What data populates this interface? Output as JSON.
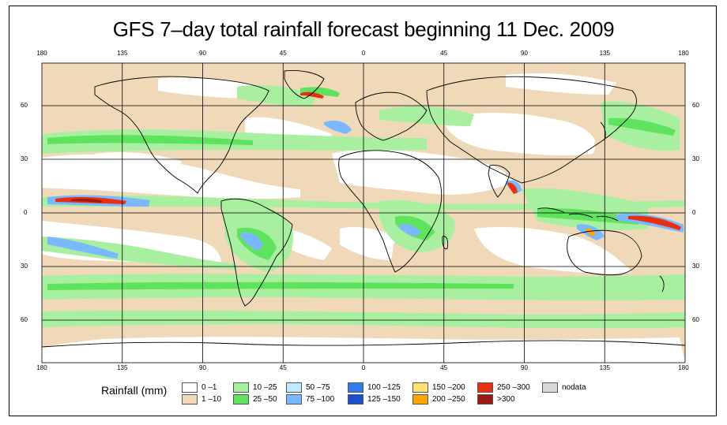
{
  "title": "GFS 7–day total rainfall forecast beginning 11 Dec. 2009",
  "axes": {
    "lon_ticks_top": [
      "180",
      "135",
      "90",
      "45",
      "0",
      "45",
      "90",
      "135",
      "180"
    ],
    "lon_ticks_bottom": [
      "180",
      "135",
      "90",
      "45",
      "0",
      "45",
      "90",
      "135",
      "180"
    ],
    "lat_ticks_left": [
      "60",
      "30",
      "0",
      "30",
      "60"
    ],
    "lat_ticks_right": [
      "60",
      "30",
      "0",
      "30",
      "60"
    ]
  },
  "legend": {
    "title": "Rainfall (mm)",
    "items": [
      {
        "label": "0 –1",
        "color": "#ffffff"
      },
      {
        "label": "1 –10",
        "color": "#f0d9b8"
      },
      {
        "label": "10 –25",
        "color": "#a8f0a0"
      },
      {
        "label": "25 –50",
        "color": "#5fe35f"
      },
      {
        "label": "50 –75",
        "color": "#bfeaff"
      },
      {
        "label": "75 –100",
        "color": "#7ab8ff"
      },
      {
        "label": "100 –125",
        "color": "#2e7df0"
      },
      {
        "label": "125 –150",
        "color": "#1a4fd0"
      },
      {
        "label": "150 –200",
        "color": "#ffe070"
      },
      {
        "label": "200 –250",
        "color": "#ffa500"
      },
      {
        "label": "250 –300",
        "color": "#e83010"
      },
      {
        "label": ">300",
        "color": "#9a1a10"
      },
      {
        "label": "nodata",
        "color": "#d8d8d8"
      }
    ]
  },
  "colors": {
    "ocean_dry": "#ffffff",
    "light": "#f0d9b8",
    "green_light": "#a8f0a0",
    "green": "#5fe35f",
    "blue_light": "#bfeaff",
    "blue": "#7ab8ff",
    "red": "#e83010",
    "darkred": "#9a1a10",
    "orange": "#ffa500"
  }
}
